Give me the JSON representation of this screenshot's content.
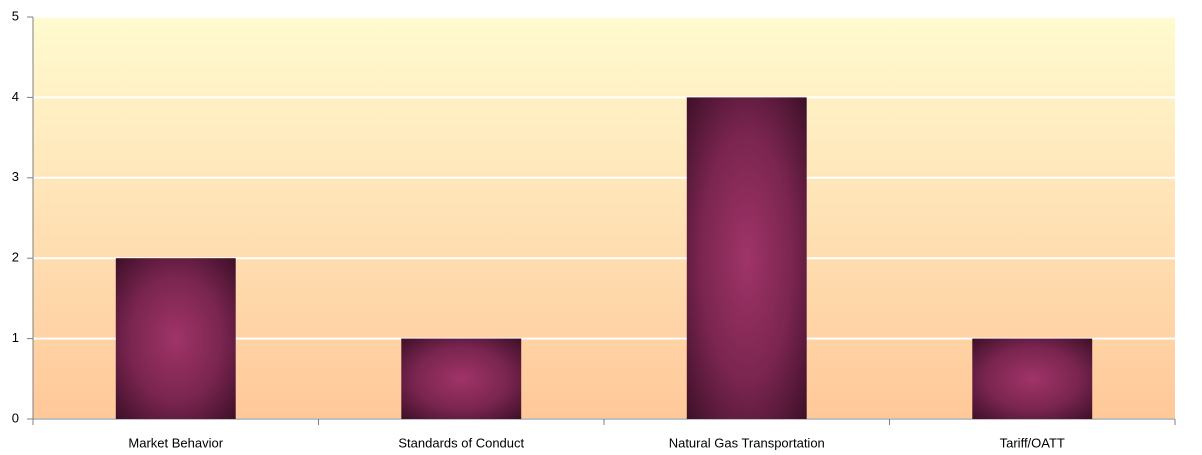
{
  "chart_data": {
    "type": "bar",
    "categories": [
      "Market Behavior",
      "Standards of Conduct",
      "Natural Gas Transportation",
      "Tariff/OATT"
    ],
    "values": [
      2,
      1,
      4,
      1
    ],
    "color": "#9b3066",
    "ylim": [
      0,
      5
    ],
    "yticks": [
      0,
      1,
      2,
      3,
      4,
      5
    ],
    "grid": true
  }
}
